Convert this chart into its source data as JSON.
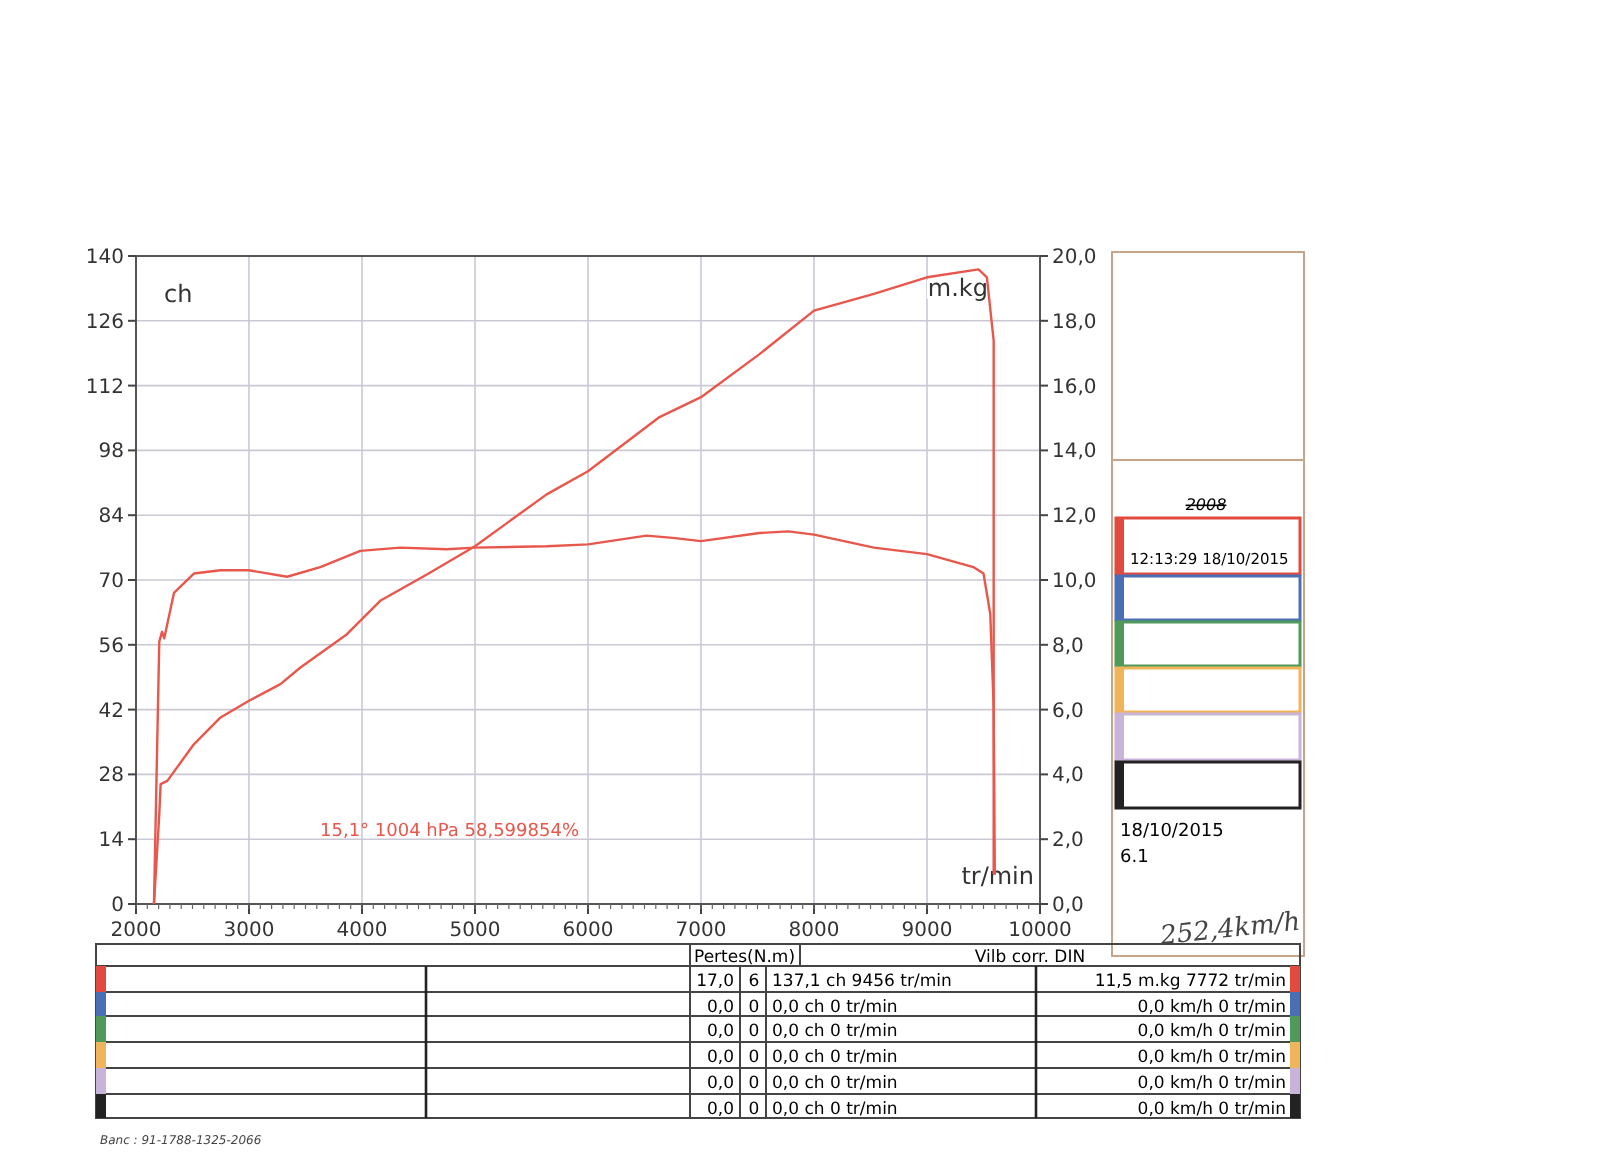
{
  "chart_data": {
    "type": "line",
    "xlabel": "tr/min",
    "ylabel": "ch",
    "y2label": "m.kg",
    "xlim": [
      2000,
      10000
    ],
    "xticks": [
      2000,
      3000,
      4000,
      5000,
      6000,
      7000,
      8000,
      9000,
      10000
    ],
    "ylim": [
      0,
      140
    ],
    "yticks": [
      0,
      14,
      28,
      42,
      56,
      70,
      84,
      98,
      112,
      126,
      140
    ],
    "y2lim": [
      0,
      20
    ],
    "y2ticks": [
      {
        "value": 0,
        "label": "0,0"
      },
      {
        "value": 2,
        "label": "2,0"
      },
      {
        "value": 4,
        "label": "4,0"
      },
      {
        "value": 6,
        "label": "6,0"
      },
      {
        "value": 8,
        "label": "8,0"
      },
      {
        "value": 10,
        "label": "10,0"
      },
      {
        "value": 12,
        "label": "12,0"
      },
      {
        "value": 14,
        "label": "14,0"
      },
      {
        "value": 16,
        "label": "16,0"
      },
      {
        "value": 18,
        "label": "18,0"
      },
      {
        "value": 20,
        "label": "20,0"
      }
    ],
    "grid": true,
    "series": [
      {
        "color": "#e8574c",
        "x": [
          2159,
          2206,
          2218,
          2277,
          2512,
          2748,
          3000,
          3278,
          3455,
          3867,
          4161,
          4574,
          5000,
          5634,
          6000,
          6633,
          7000,
          7518,
          8000,
          8530,
          9000,
          9456,
          9530,
          9590,
          9590,
          9590,
          9590
        ],
        "values": [
          0,
          19.4,
          25.9,
          26.6,
          34.5,
          40.3,
          43.9,
          47.5,
          51.1,
          58.3,
          65.5,
          71.2,
          77.3,
          88.5,
          93.5,
          105.2,
          109.5,
          118.8,
          128.2,
          131.8,
          135.4,
          137.1,
          135.4,
          121.7,
          85.7,
          42.5,
          6.5
        ]
      },
      {
        "color": "#e8574c",
        "axis": "y2",
        "x": [
          2159,
          2206,
          2230,
          2250,
          2336,
          2512,
          2748,
          3000,
          3337,
          3631,
          3985,
          4338,
          4750,
          5000,
          5634,
          6000,
          6517,
          6750,
          7000,
          7518,
          7772,
          8000,
          8530,
          9000,
          9410,
          9500,
          9560,
          9590,
          9600
        ],
        "values": [
          0,
          8.1,
          8.4,
          8.2,
          9.6,
          10.2,
          10.3,
          10.3,
          10.1,
          10.4,
          10.9,
          11.0,
          10.95,
          11.0,
          11.04,
          11.1,
          11.37,
          11.3,
          11.2,
          11.45,
          11.5,
          11.4,
          11.0,
          10.8,
          10.4,
          10.2,
          8.95,
          6.1,
          0.9
        ]
      }
    ],
    "annotations": [
      "15,1°  1004 hPa  58,599854%",
      "2008",
      "12:13:29  18/10/2015",
      "18/10/2015",
      "6.1",
      "252,4km/h",
      "Pertes(N.m)",
      "Vilb corr. DIN",
      "17,0",
      "6",
      "137,1 ch 9456 tr/min",
      "11,5 m.kg 7772 tr/min",
      "0,0",
      "0",
      "0,0 ch 0 tr/min",
      "0,0 km/h 0 tr/min",
      "0,0",
      "0",
      "0,0 ch 0 tr/min",
      "0,0 km/h 0 tr/min",
      "0,0",
      "0",
      "0,0 ch 0 tr/min",
      "0,0 km/h 0 tr/min",
      "0,0",
      "0",
      "0,0 ch 0 tr/min",
      "0,0 km/h 0 tr/min",
      "0,0",
      "0",
      "0,0 ch 0 tr/min",
      "0,0 km/h 0 tr/min",
      "Banc : 91-1788-1325-2066"
    ]
  }
}
